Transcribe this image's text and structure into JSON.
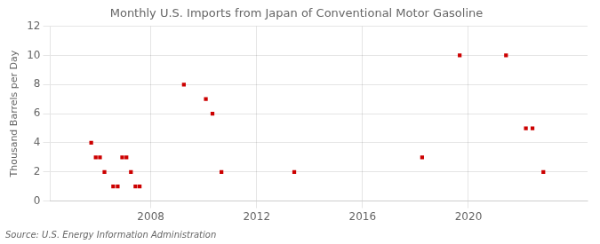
{
  "chart_data": {
    "type": "scatter",
    "title": "Monthly U.S. Imports from Japan of Conventional Motor Gasoline",
    "ylabel": "Thousand Barrels per Day",
    "annotation": "Source: U.S. Energy Information Administration",
    "x": [
      2005.75,
      2005.92,
      2006.08,
      2006.25,
      2006.58,
      2006.75,
      2006.92,
      2007.08,
      2007.25,
      2007.42,
      2007.58,
      2009.25,
      2010.08,
      2010.33,
      2010.67,
      2013.42,
      2018.25,
      2019.67,
      2021.42,
      2022.17,
      2022.42,
      2022.83
    ],
    "values": [
      4,
      3,
      3,
      2,
      1,
      1,
      3,
      3,
      2,
      1,
      1,
      8,
      7,
      6,
      2,
      2,
      3,
      10,
      10,
      5,
      5,
      2
    ],
    "color": "#cc0000",
    "marker": "square",
    "xlim": [
      2004.2,
      2024.5
    ],
    "xticks": [
      2008,
      2012,
      2016,
      2020
    ],
    "ylim": [
      0,
      12
    ],
    "yticks": [
      0,
      2,
      4,
      6,
      8,
      10,
      12
    ],
    "grid": true
  }
}
